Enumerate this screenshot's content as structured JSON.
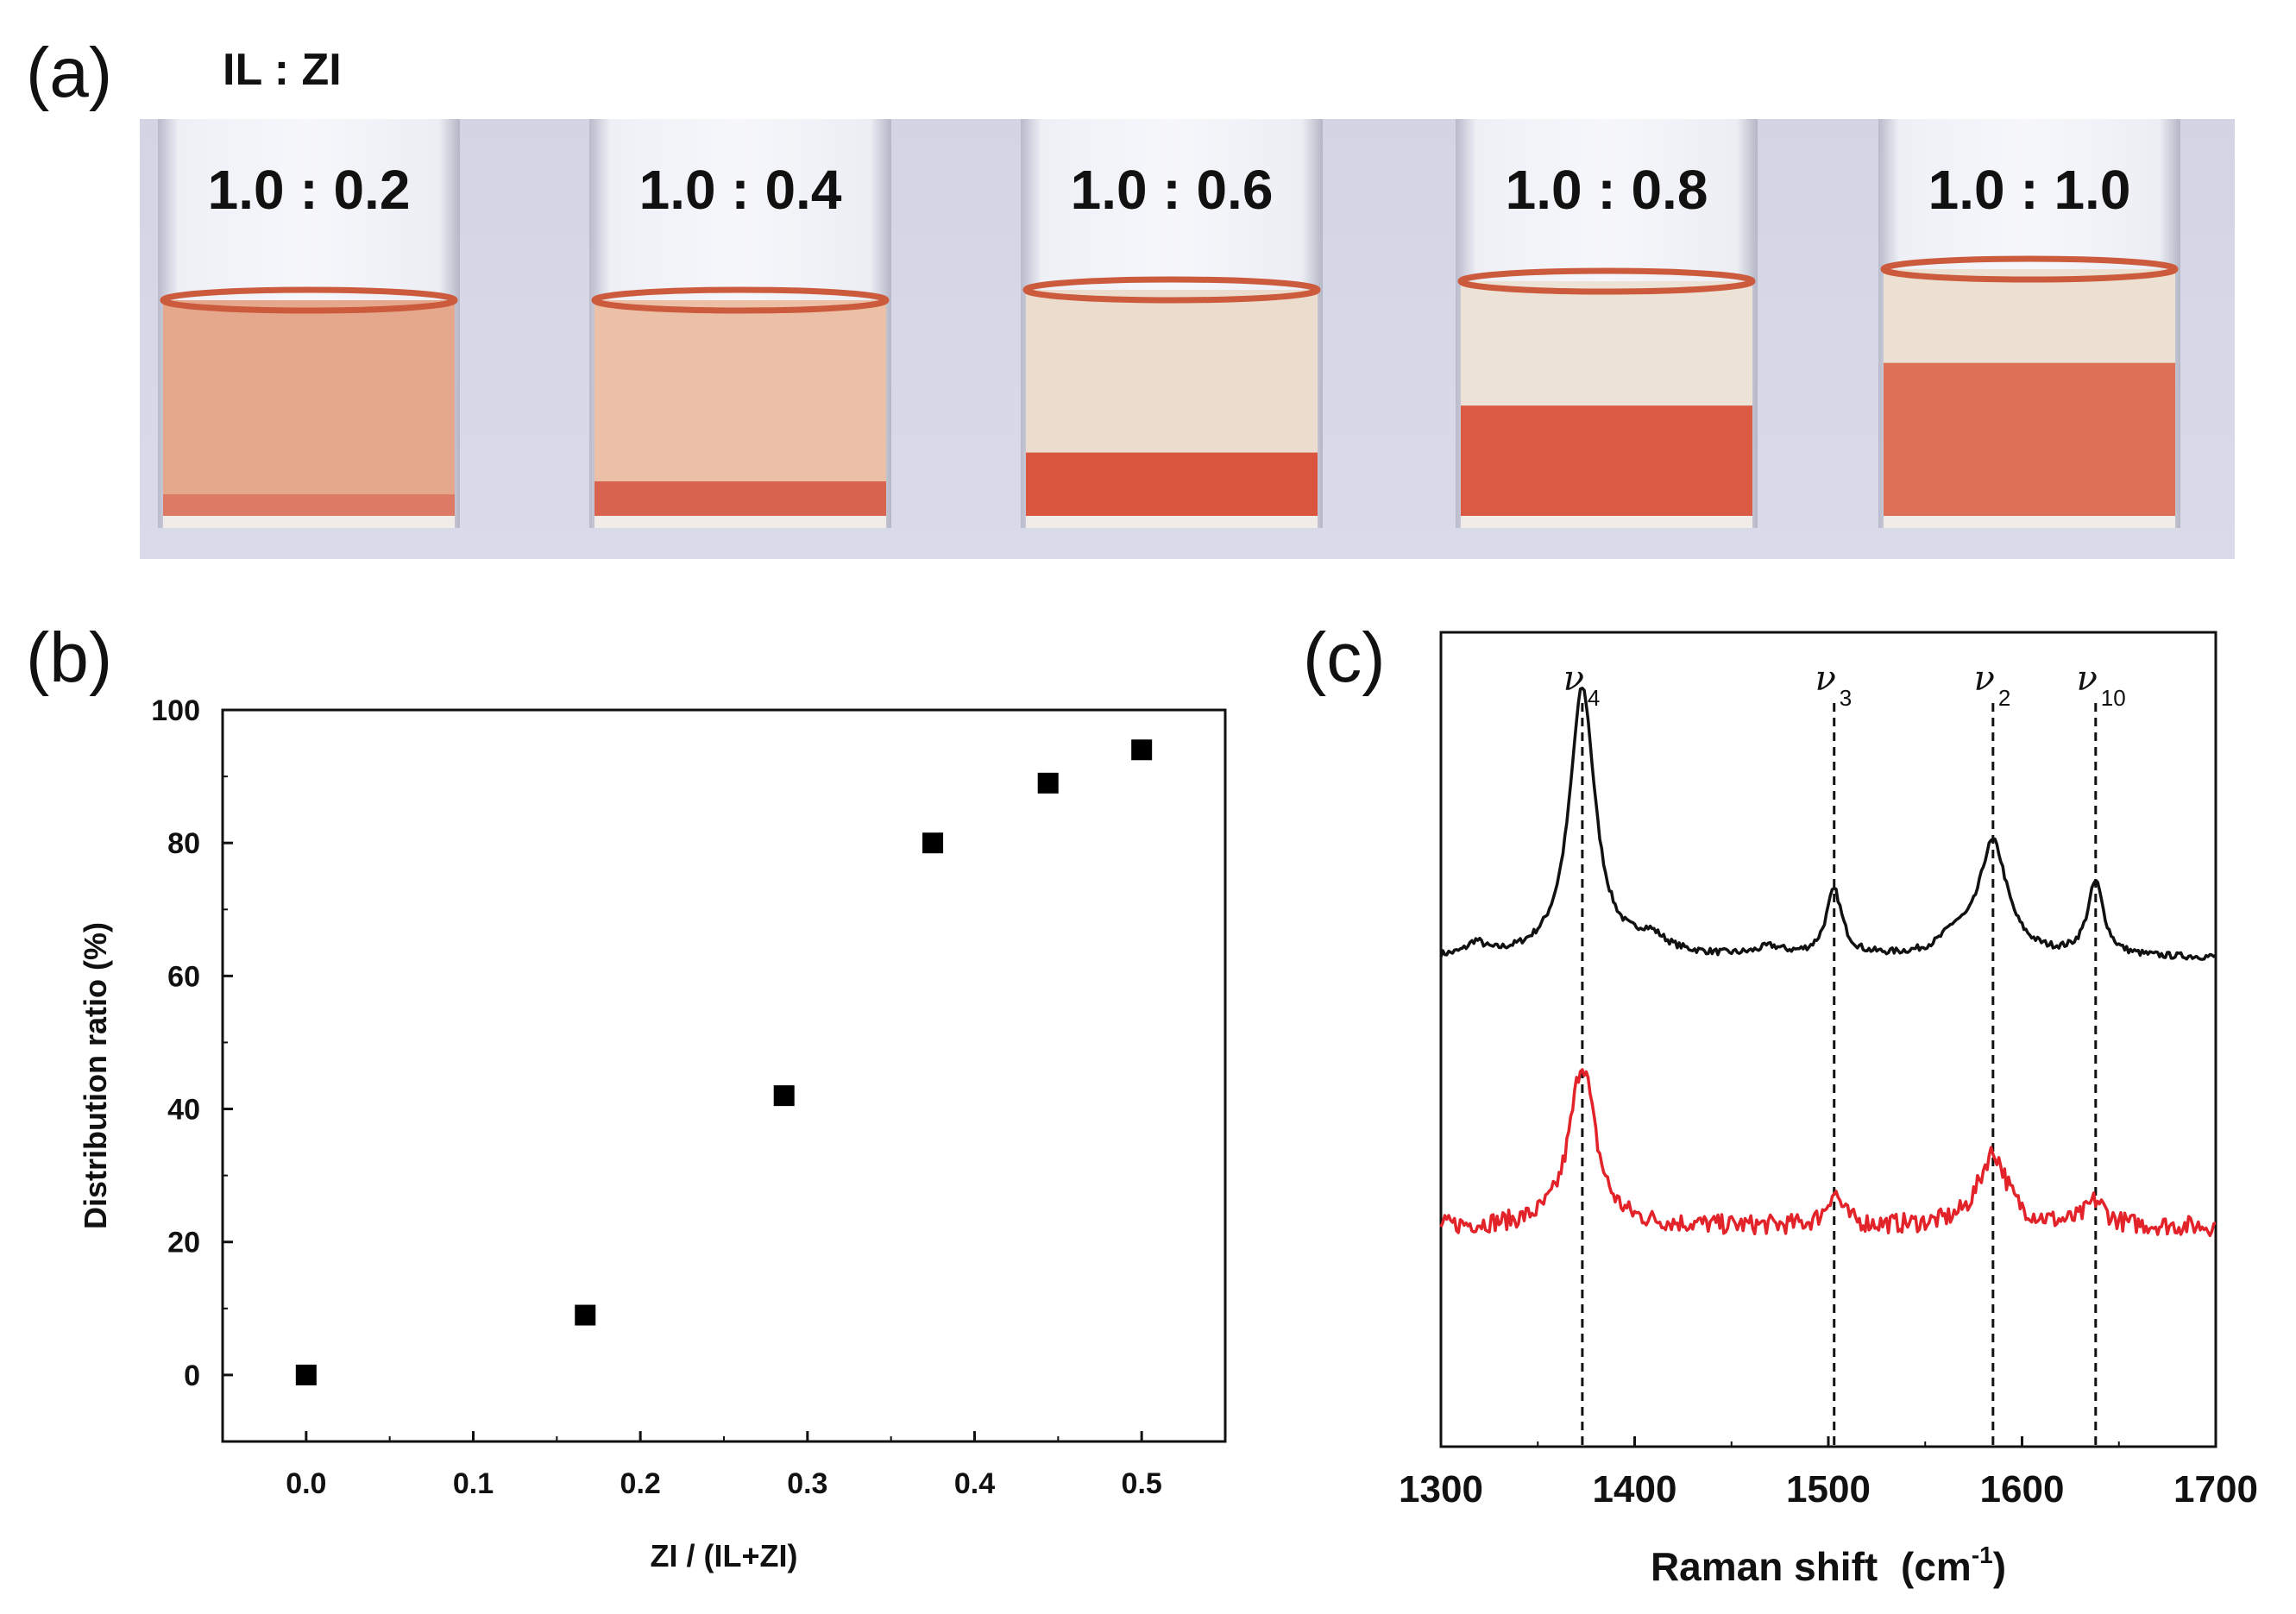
{
  "panel_labels": {
    "a": "(a)",
    "b": "(b)",
    "c": "(c)"
  },
  "photo": {
    "title": "IL : ZI",
    "vials": [
      {
        "label": "1.0 : 0.2",
        "lower_phase": 0.1,
        "liquid_color": "#e5a88c",
        "lower_color": "#dd7a66"
      },
      {
        "label": "1.0 : 0.4",
        "lower_phase": 0.16,
        "liquid_color": "#ebc0a6",
        "lower_color": "#d86450"
      },
      {
        "label": "1.0 : 0.6",
        "lower_phase": 0.28,
        "liquid_color": "#ecdccd",
        "lower_color": "#d9553e"
      },
      {
        "label": "1.0 : 0.8",
        "lower_phase": 0.47,
        "liquid_color": "#ece2d6",
        "lower_color": "#db5a44"
      },
      {
        "label": "1.0 : 1.0",
        "lower_phase": 0.62,
        "liquid_color": "#ece0d3",
        "lower_color": "#de7055"
      }
    ]
  },
  "chart_data": [
    {
      "type": "scatter",
      "xlabel": "ZI / (IL+ZI)",
      "ylabel": "Distribution ratio (%)",
      "xlim": [
        -0.05,
        0.55
      ],
      "ylim": [
        -10,
        100
      ],
      "xticks": [
        0.0,
        0.1,
        0.2,
        0.3,
        0.4,
        0.5
      ],
      "xtick_labels": [
        "0.0",
        "0.1",
        "0.2",
        "0.3",
        "0.4",
        "0.5"
      ],
      "yticks": [
        0,
        20,
        40,
        60,
        80,
        100
      ],
      "ytick_labels": [
        "0",
        "20",
        "40",
        "60",
        "80",
        "100"
      ],
      "series": [
        {
          "name": "distribution",
          "color": "#000000",
          "marker": "square",
          "x": [
            0.0,
            0.167,
            0.286,
            0.375,
            0.444,
            0.5
          ],
          "y": [
            0,
            9,
            42,
            80,
            89,
            94
          ]
        }
      ]
    },
    {
      "type": "line",
      "xlabel": "Raman shift",
      "xlabel_unit": "(cm",
      "xlabel_exp": "-1",
      "xlabel_close": ")",
      "xlim": [
        1300,
        1700
      ],
      "xticks": [
        1300,
        1400,
        1500,
        1600,
        1700
      ],
      "xtick_labels": [
        "1300",
        "1400",
        "1500",
        "1600",
        "1700"
      ],
      "ylim": [
        0,
        100
      ],
      "y_tick_labels": false,
      "peaks": [
        {
          "symbol": "ν",
          "sub": "4",
          "x": 1373
        },
        {
          "symbol": "ν",
          "sub": "3",
          "x": 1503
        },
        {
          "symbol": "ν",
          "sub": "2",
          "x": 1585
        },
        {
          "symbol": "ν",
          "sub": "10",
          "x": 1638
        }
      ],
      "series": [
        {
          "name": "upper spectrum",
          "color": "#111111",
          "baseline": 60,
          "noise": 0.4,
          "peaks": [
            [
              1373,
              33,
              8
            ],
            [
              1503,
              8,
              5
            ],
            [
              1585,
              14,
              9
            ],
            [
              1638,
              9,
              5
            ],
            [
              1318,
              1.5,
              5
            ],
            [
              1408,
              2,
              10
            ],
            [
              1565,
              2,
              8
            ],
            [
              1470,
              1,
              8
            ]
          ]
        },
        {
          "name": "lower spectrum",
          "color": "#e3232a",
          "baseline": 27,
          "noise": 1.2,
          "peaks": [
            [
              1373,
              20,
              8
            ],
            [
              1503,
              4,
              5
            ],
            [
              1585,
              9,
              9
            ],
            [
              1638,
              3,
              6
            ]
          ]
        }
      ]
    }
  ]
}
